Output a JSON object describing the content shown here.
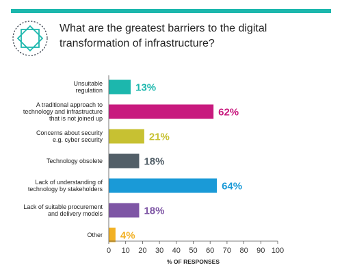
{
  "chart_data": {
    "type": "bar",
    "orientation": "horizontal",
    "title": "What are the greatest barriers to the digital transformation of infrastructure?",
    "xlabel": "% OF RESPONSES",
    "xlim": [
      0,
      100
    ],
    "xticks": [
      "0",
      "10",
      "20",
      "30",
      "40",
      "50",
      "60",
      "70",
      "80",
      "90",
      "100"
    ],
    "categories": [
      [
        "Unsuitable",
        "regulation"
      ],
      [
        "A traditional approach to",
        "technology and infrastructure",
        "that is not joined up"
      ],
      [
        "Concerns about security",
        "e.g. cyber security"
      ],
      [
        "Technology obsolete"
      ],
      [
        "Lack of understanding of",
        "technology by stakeholders"
      ],
      [
        "Lack of suitable procurement",
        "and delivery models"
      ],
      [
        "Other"
      ]
    ],
    "values": [
      13,
      62,
      21,
      18,
      64,
      18,
      4
    ],
    "value_labels": [
      "13%",
      "62%",
      "21%",
      "18%",
      "64%",
      "18%",
      "4%"
    ],
    "colors": [
      "#1cb7ad",
      "#c8197e",
      "#c7c132",
      "#525f68",
      "#1a9ad7",
      "#7e56a5",
      "#f2b124"
    ],
    "grid": false,
    "legend": "none"
  },
  "colors": {
    "accent": "#1cb7ad",
    "icon_stroke": "#3d4450"
  }
}
